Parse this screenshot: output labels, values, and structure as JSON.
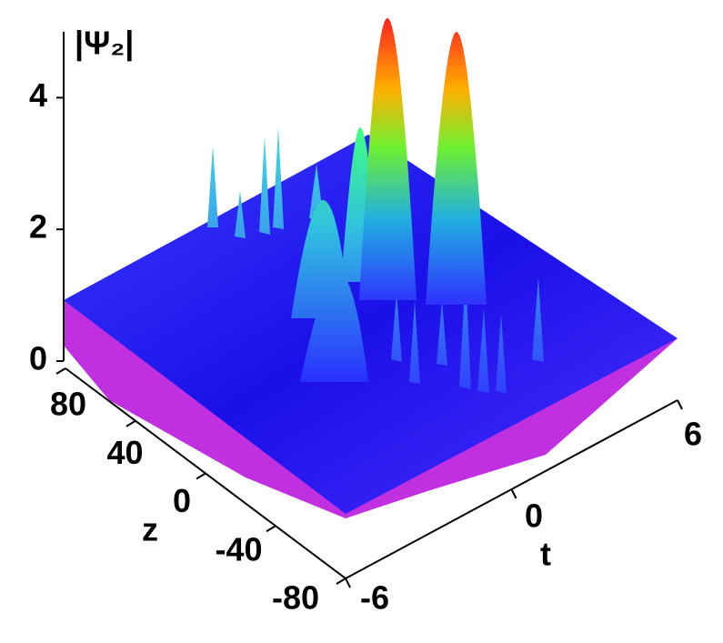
{
  "chart_data": {
    "type": "surface",
    "zlabel": "|Ψ₂|",
    "ylabel": "z",
    "xlabel": "t",
    "zlim": [
      0,
      5
    ],
    "zticks": [
      0,
      2,
      4
    ],
    "ylim": [
      80,
      -80
    ],
    "yticks": [
      80,
      40,
      0,
      -40,
      -80
    ],
    "xlim": [
      -6,
      6
    ],
    "xticks": [
      -6,
      0,
      6
    ]
  }
}
